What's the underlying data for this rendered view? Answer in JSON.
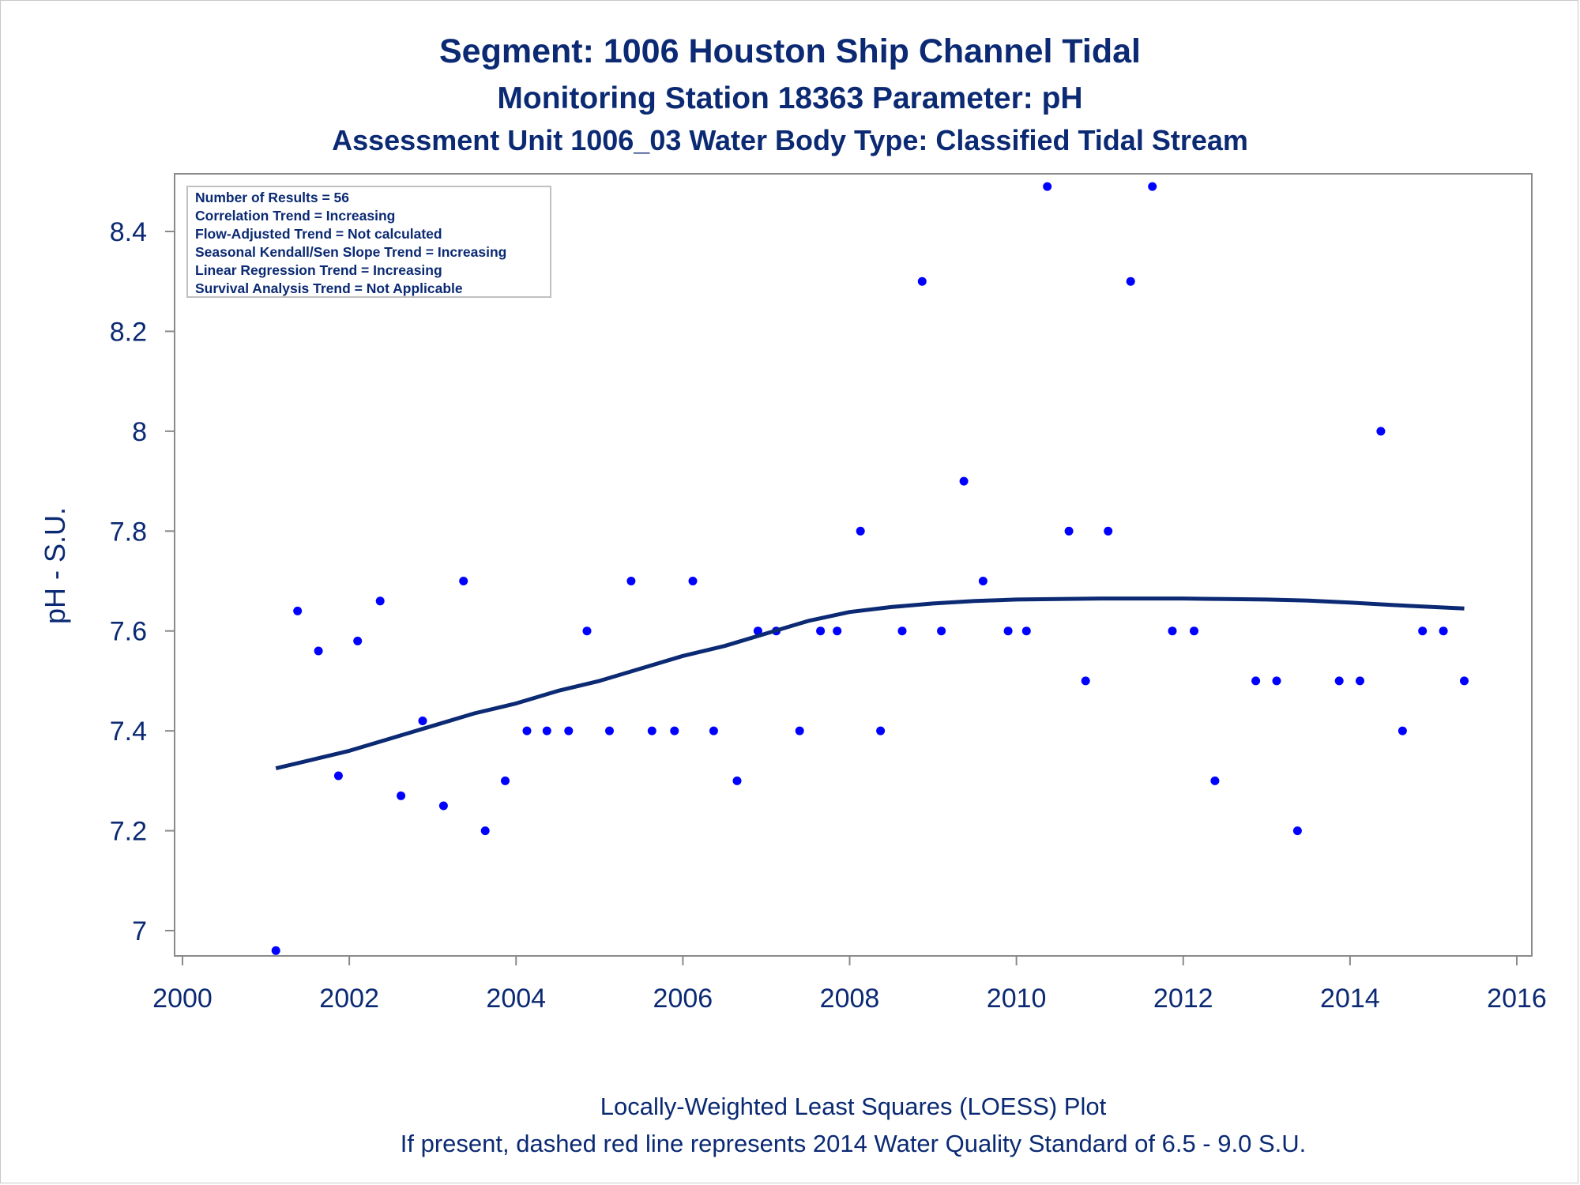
{
  "chart_data": {
    "type": "scatter",
    "title": "Segment: 1006  Houston Ship Channel Tidal",
    "subtitle": "Monitoring Station 18363 Parameter: pH",
    "subtitle2": "Assessment Unit 1006_03   Water Body Type: Classified Tidal Stream",
    "ylabel": "pH - S.U.",
    "xlabel": "",
    "xlim": [
      2000,
      2016
    ],
    "ylim": [
      6.95,
      8.52
    ],
    "xticks": [
      "2000",
      "2002",
      "2004",
      "2006",
      "2008",
      "2010",
      "2012",
      "2014",
      "2016"
    ],
    "yticks": [
      "7",
      "7.2",
      "7.4",
      "7.6",
      "7.8",
      "8",
      "8.2",
      "8.4"
    ],
    "grid": false,
    "stats_box": [
      "Number of Results = 56",
      "Correlation Trend = Increasing",
      "Flow-Adjusted Trend = Not calculated",
      "Seasonal Kendall/Sen Slope Trend = Increasing",
      "Linear Regression Trend = Increasing",
      "Survival Analysis Trend = Not Applicable"
    ],
    "footnote1": "Locally-Weighted Least Squares (LOESS) Plot",
    "footnote2": "If present, dashed red line represents 2014 Water Quality Standard of 6.5 - 9.0 S.U.",
    "series": [
      {
        "points": [
          [
            2001.12,
            6.96
          ],
          [
            2001.38,
            7.64
          ],
          [
            2001.63,
            7.56
          ],
          [
            2001.87,
            7.31
          ],
          [
            2002.1,
            7.58
          ],
          [
            2002.37,
            7.66
          ],
          [
            2002.62,
            7.27
          ],
          [
            2002.88,
            7.42
          ],
          [
            2003.13,
            7.25
          ],
          [
            2003.37,
            7.7
          ],
          [
            2003.63,
            7.2
          ],
          [
            2003.87,
            7.3
          ],
          [
            2004.13,
            7.4
          ],
          [
            2004.37,
            7.4
          ],
          [
            2004.63,
            7.4
          ],
          [
            2004.85,
            7.6
          ],
          [
            2005.12,
            7.4
          ],
          [
            2005.38,
            7.7
          ],
          [
            2005.63,
            7.4
          ],
          [
            2005.9,
            7.4
          ],
          [
            2006.12,
            7.7
          ],
          [
            2006.37,
            7.4
          ],
          [
            2006.65,
            7.3
          ],
          [
            2006.9,
            7.6
          ],
          [
            2007.12,
            7.6
          ],
          [
            2007.4,
            7.4
          ],
          [
            2007.65,
            7.6
          ],
          [
            2007.85,
            7.6
          ],
          [
            2008.13,
            7.8
          ],
          [
            2008.37,
            7.4
          ],
          [
            2008.63,
            7.6
          ],
          [
            2008.87,
            8.3
          ],
          [
            2009.1,
            7.6
          ],
          [
            2009.37,
            7.9
          ],
          [
            2009.6,
            7.7
          ],
          [
            2009.9,
            7.6
          ],
          [
            2010.12,
            7.6
          ],
          [
            2010.37,
            8.49
          ],
          [
            2010.63,
            7.8
          ],
          [
            2010.83,
            7.5
          ],
          [
            2011.1,
            7.8
          ],
          [
            2011.37,
            8.3
          ],
          [
            2011.63,
            8.49
          ],
          [
            2011.87,
            7.6
          ],
          [
            2012.13,
            7.6
          ],
          [
            2012.38,
            7.3
          ],
          [
            2012.87,
            7.5
          ],
          [
            2013.12,
            7.5
          ],
          [
            2013.37,
            7.2
          ],
          [
            2013.87,
            7.5
          ],
          [
            2014.12,
            7.5
          ],
          [
            2014.37,
            8.0
          ],
          [
            2014.63,
            7.4
          ],
          [
            2014.87,
            7.6
          ],
          [
            2015.12,
            7.6
          ],
          [
            2015.37,
            7.5
          ]
        ],
        "color": "#0000ff"
      },
      {
        "type": "line",
        "points": [
          [
            2001.12,
            7.325
          ],
          [
            2001.5,
            7.34
          ],
          [
            2002.0,
            7.36
          ],
          [
            2002.5,
            7.385
          ],
          [
            2003.0,
            7.41
          ],
          [
            2003.5,
            7.435
          ],
          [
            2004.0,
            7.455
          ],
          [
            2004.5,
            7.48
          ],
          [
            2005.0,
            7.5
          ],
          [
            2005.5,
            7.525
          ],
          [
            2006.0,
            7.55
          ],
          [
            2006.5,
            7.57
          ],
          [
            2007.0,
            7.595
          ],
          [
            2007.5,
            7.62
          ],
          [
            2008.0,
            7.638
          ],
          [
            2008.5,
            7.648
          ],
          [
            2009.0,
            7.655
          ],
          [
            2009.5,
            7.66
          ],
          [
            2010.0,
            7.663
          ],
          [
            2010.5,
            7.664
          ],
          [
            2011.0,
            7.665
          ],
          [
            2011.5,
            7.665
          ],
          [
            2012.0,
            7.665
          ],
          [
            2012.5,
            7.664
          ],
          [
            2013.0,
            7.663
          ],
          [
            2013.5,
            7.661
          ],
          [
            2014.0,
            7.657
          ],
          [
            2014.5,
            7.652
          ],
          [
            2015.0,
            7.648
          ],
          [
            2015.37,
            7.645
          ]
        ],
        "color": "#0b2a73"
      }
    ]
  }
}
